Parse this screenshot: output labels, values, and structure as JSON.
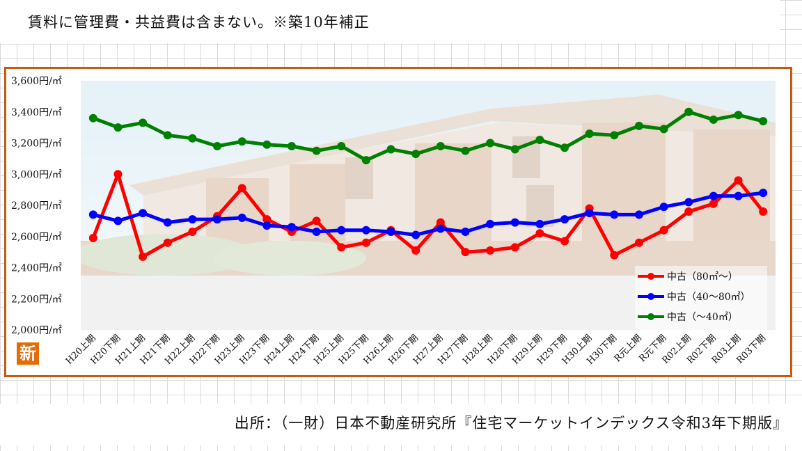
{
  "header_note": "賃料に管理費・共益費は含まない。※築10年補正",
  "source_note": "出所：（一財）日本不動産研究所『住宅マーケットインデックス令和3年下期版』",
  "badge": "新",
  "colors": {
    "frame": "#c55a11",
    "red": "#ff0000",
    "blue": "#0000ff",
    "green": "#008000"
  },
  "chart_data": {
    "type": "line",
    "title": "",
    "xlabel": "",
    "ylabel": "",
    "ylim": [
      2000,
      3600
    ],
    "y_ticks": [
      {
        "value": 3600,
        "label": "3,600円/㎡"
      },
      {
        "value": 3400,
        "label": "3,400円/㎡"
      },
      {
        "value": 3200,
        "label": "3,200円/㎡"
      },
      {
        "value": 3000,
        "label": "3,000円/㎡"
      },
      {
        "value": 2800,
        "label": "2,800円/㎡"
      },
      {
        "value": 2600,
        "label": "2,600円/㎡"
      },
      {
        "value": 2400,
        "label": "2,400円/㎡"
      },
      {
        "value": 2200,
        "label": "2,200円/㎡"
      },
      {
        "value": 2000,
        "label": "2,000円/㎡"
      }
    ],
    "categories": [
      "H20上期",
      "H20下期",
      "H21上期",
      "H21下期",
      "H22上期",
      "H22下期",
      "H23上期",
      "H23下期",
      "H24上期",
      "H24下期",
      "H25上期",
      "H25下期",
      "H26上期",
      "H26下期",
      "H27上期",
      "H27下期",
      "H28上期",
      "H28下期",
      "H29上期",
      "H29下期",
      "H30上期",
      "H30下期",
      "R元上期",
      "R元下期",
      "R02上期",
      "R02下期",
      "R03上期",
      "R03下期"
    ],
    "legend_position": "bottom-right",
    "series": [
      {
        "name": "中古（80㎡～）",
        "color": "#ff0000",
        "values": [
          2590,
          3000,
          2470,
          2560,
          2630,
          2730,
          2910,
          2710,
          2630,
          2700,
          2530,
          2560,
          2640,
          2510,
          2690,
          2500,
          2510,
          2530,
          2620,
          2570,
          2780,
          2480,
          2560,
          2640,
          2760,
          2810,
          2960,
          2760
        ]
      },
      {
        "name": "中古（40～80㎡）",
        "color": "#0000ff",
        "values": [
          2740,
          2700,
          2750,
          2690,
          2710,
          2710,
          2720,
          2670,
          2660,
          2630,
          2640,
          2640,
          2630,
          2610,
          2650,
          2630,
          2680,
          2690,
          2680,
          2710,
          2750,
          2740,
          2740,
          2790,
          2820,
          2860,
          2860,
          2880
        ]
      },
      {
        "name": "中古（～40㎡）",
        "color": "#008000",
        "values": [
          3360,
          3300,
          3330,
          3250,
          3230,
          3180,
          3210,
          3190,
          3180,
          3150,
          3180,
          3090,
          3160,
          3130,
          3180,
          3150,
          3200,
          3160,
          3220,
          3170,
          3260,
          3250,
          3310,
          3290,
          3400,
          3350,
          3380,
          3340
        ]
      }
    ]
  }
}
